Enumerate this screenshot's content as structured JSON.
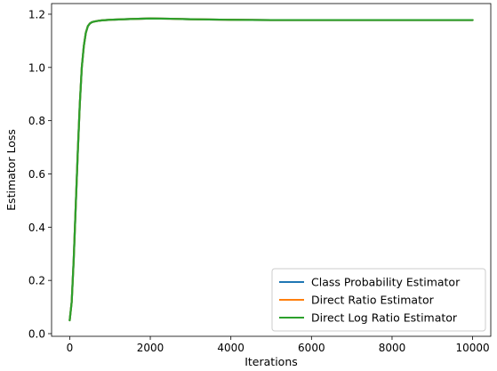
{
  "chart_data": {
    "type": "line",
    "title": "",
    "xlabel": "Iterations",
    "ylabel": "Estimator Loss",
    "xlim": [
      -450,
      10450
    ],
    "ylim": [
      -0.01,
      1.24
    ],
    "xticks": [
      0,
      2000,
      4000,
      6000,
      8000,
      10000
    ],
    "yticks": [
      0.0,
      0.2,
      0.4,
      0.6,
      0.8,
      1.0,
      1.2
    ],
    "xtick_labels": [
      "0",
      "2000",
      "4000",
      "6000",
      "8000",
      "10000"
    ],
    "ytick_labels": [
      "0.0",
      "0.2",
      "0.4",
      "0.6",
      "0.8",
      "1.0",
      "1.2"
    ],
    "grid": false,
    "legend_position": "lower-right",
    "series": [
      {
        "name": "Class Probability Estimator",
        "color": "#1f77b4",
        "x": [
          0,
          50,
          100,
          150,
          200,
          250,
          300,
          350,
          400,
          450,
          500,
          550,
          600,
          700,
          800,
          1000,
          1500,
          2000,
          2500,
          3000,
          4000,
          5000,
          6000,
          7000,
          8000,
          9000,
          10000
        ],
        "y": [
          0.05,
          0.12,
          0.28,
          0.48,
          0.68,
          0.86,
          1.0,
          1.08,
          1.13,
          1.155,
          1.165,
          1.17,
          1.172,
          1.175,
          1.177,
          1.179,
          1.182,
          1.184,
          1.183,
          1.181,
          1.179,
          1.178,
          1.178,
          1.178,
          1.178,
          1.178,
          1.178
        ]
      },
      {
        "name": "Direct Ratio Estimator",
        "color": "#ff7f0e",
        "x": [
          0,
          50,
          100,
          150,
          200,
          250,
          300,
          350,
          400,
          450,
          500,
          550,
          600,
          700,
          800,
          1000,
          1500,
          2000,
          2500,
          3000,
          4000,
          5000,
          6000,
          7000,
          8000,
          9000,
          10000
        ],
        "y": [
          0.05,
          0.12,
          0.28,
          0.48,
          0.68,
          0.86,
          1.0,
          1.08,
          1.13,
          1.155,
          1.165,
          1.17,
          1.172,
          1.175,
          1.177,
          1.179,
          1.182,
          1.184,
          1.183,
          1.181,
          1.179,
          1.178,
          1.178,
          1.178,
          1.178,
          1.178,
          1.178
        ]
      },
      {
        "name": "Direct Log Ratio Estimator",
        "color": "#2ca02c",
        "x": [
          0,
          50,
          100,
          150,
          200,
          250,
          300,
          350,
          400,
          450,
          500,
          550,
          600,
          700,
          800,
          1000,
          1500,
          2000,
          2500,
          3000,
          4000,
          5000,
          6000,
          7000,
          8000,
          9000,
          10000
        ],
        "y": [
          0.05,
          0.12,
          0.28,
          0.48,
          0.68,
          0.86,
          1.0,
          1.08,
          1.13,
          1.155,
          1.165,
          1.17,
          1.172,
          1.175,
          1.177,
          1.179,
          1.182,
          1.184,
          1.183,
          1.181,
          1.179,
          1.178,
          1.178,
          1.178,
          1.178,
          1.178,
          1.178
        ]
      }
    ]
  }
}
